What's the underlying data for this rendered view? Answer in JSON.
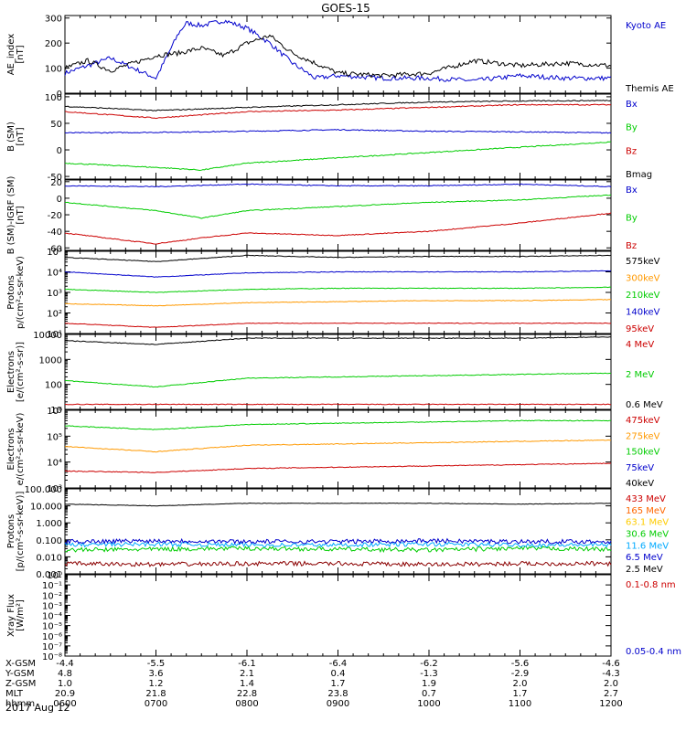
{
  "title": "GOES-15",
  "date_label": "2017 Aug 12",
  "x_axis": {
    "ticks": [
      "0600",
      "0700",
      "0800",
      "0900",
      "1000",
      "1100",
      "1200"
    ],
    "rows": [
      {
        "label": "X-GSM",
        "values": [
          "-4.4",
          "-5.5",
          "-6.1",
          "-6.4",
          "-6.2",
          "-5.6",
          "-4.6"
        ]
      },
      {
        "label": "Y-GSM",
        "values": [
          "4.8",
          "3.6",
          "2.1",
          "0.4",
          "-1.3",
          "-2.9",
          "-4.3"
        ]
      },
      {
        "label": "Z-GSM",
        "values": [
          "1.0",
          "1.2",
          "1.4",
          "1.7",
          "1.9",
          "2.0",
          "2.0"
        ]
      },
      {
        "label": "MLT",
        "values": [
          "20.9",
          "21.8",
          "22.8",
          "23.8",
          "0.7",
          "1.7",
          "2.7"
        ]
      },
      {
        "label": "hhmm",
        "values": [
          "0600",
          "0700",
          "0800",
          "0900",
          "1000",
          "1100",
          "1200"
        ]
      }
    ]
  },
  "chart_data": [
    {
      "type": "line",
      "id": "ae",
      "ylabel": [
        "AE_index",
        "[nT]"
      ],
      "scale": "linear",
      "ylim": [
        0,
        310
      ],
      "yticks": [
        0,
        100,
        200,
        300
      ],
      "series": [
        {
          "name": "Kyoto AE",
          "color": "#0000cc",
          "x": [
            "0600",
            "0615",
            "0630",
            "0645",
            "0700",
            "0715",
            "0720",
            "0730",
            "0745",
            "0800",
            "0815",
            "0830",
            "0845",
            "0900",
            "0930",
            "1000",
            "1030",
            "1100",
            "1130",
            "1200"
          ],
          "values": [
            80,
            110,
            140,
            100,
            60,
            240,
            280,
            270,
            290,
            260,
            200,
            120,
            60,
            70,
            60,
            60,
            50,
            70,
            60,
            60
          ]
        },
        {
          "name": "Themis AE",
          "color": "#000000",
          "x": [
            "0600",
            "0615",
            "0630",
            "0645",
            "0700",
            "0715",
            "0730",
            "0745",
            "0800",
            "0815",
            "0830",
            "0845",
            "0900",
            "0930",
            "1000",
            "1030",
            "1100",
            "1130",
            "1200"
          ],
          "values": [
            100,
            130,
            90,
            120,
            150,
            160,
            180,
            150,
            200,
            230,
            160,
            120,
            80,
            70,
            80,
            130,
            110,
            120,
            110
          ]
        }
      ]
    },
    {
      "type": "line",
      "id": "bsm",
      "ylabel": [
        "B (SM)",
        "[nT]"
      ],
      "scale": "linear",
      "ylim": [
        -55,
        105
      ],
      "yticks": [
        -50,
        0,
        50,
        100
      ],
      "series": [
        {
          "name": "Bx",
          "color": "#0000cc",
          "x": [
            "0600",
            "0700",
            "0800",
            "0900",
            "1000",
            "1100",
            "1200"
          ],
          "values": [
            32,
            33,
            35,
            38,
            35,
            34,
            32
          ]
        },
        {
          "name": "By",
          "color": "#00cc00",
          "x": [
            "0600",
            "0700",
            "0730",
            "0800",
            "0900",
            "1000",
            "1100",
            "1200"
          ],
          "values": [
            -25,
            -33,
            -38,
            -25,
            -15,
            -5,
            5,
            15
          ]
        },
        {
          "name": "Bz",
          "color": "#cc0000",
          "x": [
            "0600",
            "0700",
            "0800",
            "0900",
            "1000",
            "1100",
            "1200"
          ],
          "values": [
            72,
            60,
            72,
            75,
            80,
            85,
            85
          ]
        },
        {
          "name": "Bmag",
          "color": "#000000",
          "x": [
            "0600",
            "0700",
            "0800",
            "0900",
            "1000",
            "1100",
            "1200"
          ],
          "values": [
            82,
            74,
            80,
            85,
            90,
            92,
            93
          ]
        }
      ]
    },
    {
      "type": "line",
      "id": "bsmigrf",
      "ylabel": [
        "B (SM)-IGRF (SM)",
        "[nT]"
      ],
      "scale": "linear",
      "ylim": [
        -63,
        22
      ],
      "yticks": [
        -60,
        -40,
        -20,
        0,
        20
      ],
      "series": [
        {
          "name": "Bx",
          "color": "#0000cc",
          "x": [
            "0600",
            "0700",
            "0800",
            "0900",
            "1000",
            "1100",
            "1200"
          ],
          "values": [
            15,
            14,
            17,
            15,
            15,
            17,
            14
          ]
        },
        {
          "name": "By",
          "color": "#00cc00",
          "x": [
            "0600",
            "0700",
            "0730",
            "0800",
            "0900",
            "1000",
            "1100",
            "1200"
          ],
          "values": [
            -5,
            -15,
            -24,
            -15,
            -10,
            -5,
            -2,
            4
          ]
        },
        {
          "name": "Bz",
          "color": "#cc0000",
          "x": [
            "0600",
            "0645",
            "0700",
            "0730",
            "0800",
            "0900",
            "1000",
            "1100",
            "1200"
          ],
          "values": [
            -42,
            -52,
            -55,
            -48,
            -42,
            -45,
            -40,
            -30,
            -18
          ]
        }
      ]
    },
    {
      "type": "line",
      "id": "protons",
      "ylabel": [
        "Protons",
        "p/(cm²-s-sr-keV)"
      ],
      "scale": "log",
      "ylim": [
        1,
        5
      ],
      "ytick_labels": [
        "10¹",
        "10²",
        "10³",
        "10⁴",
        "10⁵"
      ],
      "series": [
        {
          "name": "575keV",
          "color": "#000000",
          "x": [
            "0600",
            "0700",
            "0800",
            "0900",
            "1000",
            "1100",
            "1200"
          ],
          "values": [
            4.7,
            4.5,
            4.8,
            4.7,
            4.75,
            4.75,
            4.8
          ]
        },
        {
          "name": "300keV",
          "color": "#ff9900",
          "x": [
            "0600",
            "0700",
            "0800",
            "0900",
            "1000",
            "1100",
            "1200"
          ],
          "values": [
            2.45,
            2.35,
            2.5,
            2.55,
            2.6,
            2.6,
            2.65
          ]
        },
        {
          "name": "210keV",
          "color": "#00cc00",
          "x": [
            "0600",
            "0700",
            "0800",
            "0900",
            "1000",
            "1100",
            "1200"
          ],
          "values": [
            3.15,
            3.0,
            3.15,
            3.2,
            3.2,
            3.2,
            3.25
          ]
        },
        {
          "name": "140keV",
          "color": "#0000cc",
          "x": [
            "0600",
            "0700",
            "0800",
            "0900",
            "1000",
            "1100",
            "1200"
          ],
          "values": [
            4.0,
            3.75,
            3.95,
            4.0,
            4.0,
            4.0,
            4.05
          ]
        },
        {
          "name": "95keV",
          "color": "#cc0000",
          "x": [
            "0600",
            "0700",
            "0800",
            "0900",
            "1000",
            "1100",
            "1200"
          ],
          "values": [
            1.5,
            1.3,
            1.5,
            1.5,
            1.5,
            1.5,
            1.5
          ]
        }
      ]
    },
    {
      "type": "line",
      "id": "electrons1",
      "ylabel": [
        "Electrons",
        "[e/(cm²-s-sr)]"
      ],
      "scale": "log",
      "ylim": [
        1,
        4
      ],
      "ytick_labels": [
        "10",
        "100",
        "1000",
        "10000"
      ],
      "series": [
        {
          "name": "4 MeV",
          "color": "#cc0000",
          "x": [
            "0600",
            "0700",
            "0800",
            "0900",
            "1000",
            "1100",
            "1200"
          ],
          "values": [
            1.2,
            1.2,
            1.2,
            1.2,
            1.2,
            1.2,
            1.2
          ]
        },
        {
          "name": "2 MeV",
          "color": "#00cc00",
          "x": [
            "0600",
            "0700",
            "0800",
            "0900",
            "1000",
            "1100",
            "1200"
          ],
          "values": [
            2.15,
            1.9,
            2.25,
            2.3,
            2.35,
            2.4,
            2.45
          ]
        },
        {
          "name": "0.6 MeV",
          "color": "#000000",
          "x": [
            "0600",
            "0700",
            "0800",
            "0900",
            "1000",
            "1100",
            "1200"
          ],
          "values": [
            3.75,
            3.6,
            3.85,
            3.85,
            3.85,
            3.85,
            3.9
          ]
        }
      ]
    },
    {
      "type": "line",
      "id": "electrons2",
      "ylabel": [
        "Electrons",
        "e/(cm²-s-sr-keV)"
      ],
      "scale": "log",
      "ylim": [
        3,
        6
      ],
      "ytick_labels": [
        "10³",
        "10⁴",
        "10⁵",
        "10⁶"
      ],
      "series": [
        {
          "name": "475keV",
          "color": "#cc0000",
          "x": [
            "0600",
            "0700",
            "0800",
            "0900",
            "1000",
            "1100",
            "1200"
          ],
          "values": [
            3.65,
            3.6,
            3.75,
            3.8,
            3.85,
            3.9,
            3.95
          ]
        },
        {
          "name": "275keV",
          "color": "#ff9900",
          "x": [
            "0600",
            "0700",
            "0800",
            "0900",
            "1000",
            "1100",
            "1200"
          ],
          "values": [
            4.6,
            4.4,
            4.65,
            4.7,
            4.75,
            4.8,
            4.85
          ]
        },
        {
          "name": "150keV",
          "color": "#00cc00",
          "x": [
            "0600",
            "0700",
            "0800",
            "0900",
            "1000",
            "1100",
            "1200"
          ],
          "values": [
            5.4,
            5.25,
            5.45,
            5.5,
            5.55,
            5.6,
            5.6
          ]
        },
        {
          "name": "75keV",
          "color": "#0000cc",
          "x": [],
          "values": []
        },
        {
          "name": "40keV",
          "color": "#000000",
          "x": [],
          "values": []
        }
      ]
    },
    {
      "type": "line",
      "id": "protons2",
      "ylabel": [
        "Protons",
        "[p/(cm²-s-sr-keV)]"
      ],
      "scale": "log",
      "ylim": [
        -3,
        2
      ],
      "ytick_labels": [
        "0.001",
        "0.010",
        "0.100",
        "1.000",
        "10.000",
        "100.000"
      ],
      "series": [
        {
          "name": "433 MeV",
          "color": "#cc0000",
          "x": [],
          "values": []
        },
        {
          "name": "165 MeV",
          "color": "#ff6600",
          "x": [],
          "values": []
        },
        {
          "name": "63.1 MeV",
          "color": "#ffcc00",
          "x": [],
          "values": []
        },
        {
          "name": "30.6 MeV",
          "color": "#00cc00",
          "x": [
            "0600",
            "0700",
            "0800",
            "0900",
            "1000",
            "1100",
            "1200"
          ],
          "values": [
            -1.6,
            -1.55,
            -1.5,
            -1.55,
            -1.6,
            -1.5,
            -1.55
          ]
        },
        {
          "name": "11.6 MeV",
          "color": "#00aaff",
          "x": [
            "0600",
            "0700",
            "0800",
            "0900",
            "1000",
            "1100",
            "1200"
          ],
          "values": [
            -1.3,
            -1.25,
            -1.3,
            -1.3,
            -1.25,
            -1.3,
            -1.3
          ]
        },
        {
          "name": "6.5 MeV",
          "color": "#0000cc",
          "x": [
            "0600",
            "0700",
            "0800",
            "0900",
            "1000",
            "1100",
            "1200"
          ],
          "values": [
            -1.1,
            -1.05,
            -1.1,
            -1.1,
            -1.05,
            -1.1,
            -1.1
          ]
        },
        {
          "name": "2.5 MeV",
          "color": "#000000",
          "x": [
            "0600",
            "0700",
            "0800",
            "0900",
            "1000",
            "1100",
            "1200"
          ],
          "values": [
            1.1,
            1.0,
            1.15,
            1.15,
            1.15,
            1.1,
            1.15
          ]
        },
        {
          "name": "",
          "color": "#8b0000",
          "x": [
            "0600",
            "0700",
            "0800",
            "0900",
            "1000",
            "1100",
            "1200"
          ],
          "values": [
            -2.4,
            -2.45,
            -2.4,
            -2.4,
            -2.45,
            -2.4,
            -2.4
          ]
        }
      ]
    },
    {
      "type": "line",
      "id": "xray",
      "ylabel": [
        "Xray Flux",
        "[W/m²]"
      ],
      "scale": "log",
      "ylim": [
        -8,
        0
      ],
      "ytick_labels": [
        "10⁻⁸",
        "10⁻⁷",
        "10⁻⁶",
        "10⁻⁵",
        "10⁻⁴",
        "10⁻³",
        "10⁻²",
        "10⁻¹",
        "10⁰"
      ],
      "series": [
        {
          "name": "0.1-0.8 nm",
          "color": "#cc0000",
          "x": [],
          "values": []
        },
        {
          "name": "0.05-0.4 nm",
          "color": "#0000cc",
          "x": [],
          "values": []
        }
      ]
    }
  ]
}
